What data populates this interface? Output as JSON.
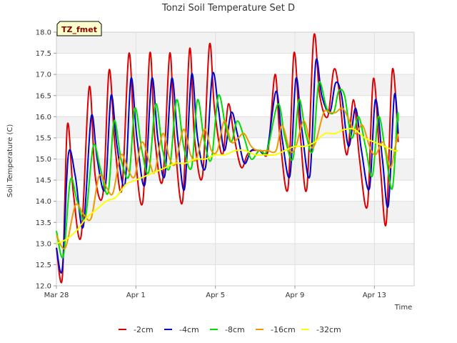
{
  "chart_data": {
    "type": "line",
    "title": "Tonzi Soil Temperature Set D",
    "xlabel": "Time",
    "ylabel": "Soil Temperature (C)",
    "site_label": "TZ_fmet",
    "ylim": [
      12.0,
      18.0
    ],
    "xlim": [
      0,
      18
    ],
    "x_unit": "days since Mar 28",
    "yticks": [
      "12.0",
      "12.5",
      "13.0",
      "13.5",
      "14.0",
      "14.5",
      "15.0",
      "15.5",
      "16.0",
      "16.5",
      "17.0",
      "17.5",
      "18.0"
    ],
    "xticks": [
      {
        "label": "Mar 28",
        "day": 0
      },
      {
        "label": "Apr 1",
        "day": 4
      },
      {
        "label": "Apr 5",
        "day": 8
      },
      {
        "label": "Apr 9",
        "day": 12
      },
      {
        "label": "Apr 13",
        "day": 16
      }
    ],
    "grid": true,
    "legend": "bottom",
    "series": [
      {
        "name": "-2cm",
        "color": "#dd0000",
        "points": [
          [
            0.0,
            12.9
          ],
          [
            0.3,
            12.2
          ],
          [
            0.55,
            15.8
          ],
          [
            0.85,
            14.2
          ],
          [
            1.25,
            13.2
          ],
          [
            1.65,
            16.7
          ],
          [
            1.95,
            14.6
          ],
          [
            2.35,
            14.2
          ],
          [
            2.65,
            17.1
          ],
          [
            2.95,
            15.3
          ],
          [
            3.3,
            14.3
          ],
          [
            3.65,
            17.5
          ],
          [
            3.95,
            15.2
          ],
          [
            4.35,
            14.0
          ],
          [
            4.7,
            17.5
          ],
          [
            4.95,
            15.5
          ],
          [
            5.35,
            14.5
          ],
          [
            5.7,
            17.5
          ],
          [
            5.95,
            15.5
          ],
          [
            6.35,
            14.0
          ],
          [
            6.7,
            17.6
          ],
          [
            6.95,
            15.5
          ],
          [
            7.35,
            14.6
          ],
          [
            7.7,
            17.7
          ],
          [
            7.95,
            16.2
          ],
          [
            8.35,
            15.1
          ],
          [
            8.65,
            16.3
          ],
          [
            8.95,
            15.5
          ],
          [
            9.3,
            14.8
          ],
          [
            9.6,
            15.1
          ],
          [
            9.85,
            15.2
          ],
          [
            10.3,
            15.2
          ],
          [
            10.65,
            15.2
          ],
          [
            11.0,
            17.0
          ],
          [
            11.25,
            15.5
          ],
          [
            11.65,
            14.3
          ],
          [
            11.95,
            17.5
          ],
          [
            12.25,
            15.7
          ],
          [
            12.6,
            14.3
          ],
          [
            12.95,
            17.9
          ],
          [
            13.25,
            16.5
          ],
          [
            13.65,
            16.0
          ],
          [
            13.95,
            17.1
          ],
          [
            14.2,
            16.7
          ],
          [
            14.6,
            15.1
          ],
          [
            14.95,
            16.4
          ],
          [
            15.25,
            15.0
          ],
          [
            15.65,
            13.9
          ],
          [
            15.95,
            16.9
          ],
          [
            16.3,
            14.8
          ],
          [
            16.6,
            13.5
          ],
          [
            16.9,
            17.1
          ],
          [
            17.2,
            15.4
          ]
        ]
      },
      {
        "name": "-4cm",
        "color": "#0000cc",
        "points": [
          [
            0.0,
            12.9
          ],
          [
            0.3,
            12.4
          ],
          [
            0.6,
            15.1
          ],
          [
            0.95,
            14.6
          ],
          [
            1.35,
            13.4
          ],
          [
            1.75,
            16.0
          ],
          [
            2.05,
            15.0
          ],
          [
            2.45,
            14.3
          ],
          [
            2.75,
            16.5
          ],
          [
            3.05,
            15.3
          ],
          [
            3.45,
            14.4
          ],
          [
            3.75,
            16.9
          ],
          [
            4.05,
            15.5
          ],
          [
            4.45,
            14.4
          ],
          [
            4.8,
            16.9
          ],
          [
            5.1,
            15.5
          ],
          [
            5.45,
            14.6
          ],
          [
            5.8,
            16.9
          ],
          [
            6.1,
            15.5
          ],
          [
            6.45,
            14.3
          ],
          [
            6.8,
            17.0
          ],
          [
            7.1,
            15.5
          ],
          [
            7.5,
            14.8
          ],
          [
            7.85,
            17.0
          ],
          [
            8.15,
            16.2
          ],
          [
            8.45,
            15.2
          ],
          [
            8.8,
            16.1
          ],
          [
            9.1,
            15.6
          ],
          [
            9.45,
            14.9
          ],
          [
            9.8,
            15.2
          ],
          [
            10.2,
            15.2
          ],
          [
            10.6,
            15.2
          ],
          [
            11.05,
            16.6
          ],
          [
            11.35,
            15.5
          ],
          [
            11.75,
            14.6
          ],
          [
            12.05,
            16.9
          ],
          [
            12.35,
            15.7
          ],
          [
            12.75,
            14.6
          ],
          [
            13.05,
            17.3
          ],
          [
            13.35,
            16.5
          ],
          [
            13.75,
            16.1
          ],
          [
            14.05,
            16.8
          ],
          [
            14.35,
            16.5
          ],
          [
            14.7,
            15.3
          ],
          [
            15.05,
            16.2
          ],
          [
            15.35,
            15.2
          ],
          [
            15.75,
            14.3
          ],
          [
            16.05,
            16.4
          ],
          [
            16.4,
            15.0
          ],
          [
            16.7,
            13.9
          ],
          [
            17.0,
            16.5
          ],
          [
            17.2,
            15.6
          ]
        ]
      },
      {
        "name": "-8cm",
        "color": "#00dd00",
        "points": [
          [
            0.0,
            13.3
          ],
          [
            0.35,
            12.7
          ],
          [
            0.7,
            14.5
          ],
          [
            1.05,
            14.0
          ],
          [
            1.45,
            13.6
          ],
          [
            1.85,
            15.3
          ],
          [
            2.2,
            14.8
          ],
          [
            2.6,
            14.2
          ],
          [
            2.9,
            15.9
          ],
          [
            3.25,
            15.0
          ],
          [
            3.65,
            14.6
          ],
          [
            3.95,
            16.2
          ],
          [
            4.3,
            15.2
          ],
          [
            4.65,
            14.7
          ],
          [
            5.0,
            16.3
          ],
          [
            5.35,
            15.2
          ],
          [
            5.7,
            14.8
          ],
          [
            6.05,
            16.4
          ],
          [
            6.4,
            15.3
          ],
          [
            6.8,
            14.8
          ],
          [
            7.1,
            16.4
          ],
          [
            7.45,
            15.4
          ],
          [
            7.8,
            15.0
          ],
          [
            8.15,
            16.5
          ],
          [
            8.5,
            15.8
          ],
          [
            8.8,
            15.4
          ],
          [
            9.1,
            15.9
          ],
          [
            9.45,
            15.5
          ],
          [
            9.8,
            15.0
          ],
          [
            10.2,
            15.2
          ],
          [
            10.6,
            15.2
          ],
          [
            11.15,
            16.3
          ],
          [
            11.5,
            15.5
          ],
          [
            11.9,
            15.0
          ],
          [
            12.2,
            16.4
          ],
          [
            12.55,
            15.6
          ],
          [
            12.9,
            15.2
          ],
          [
            13.2,
            16.8
          ],
          [
            13.6,
            16.2
          ],
          [
            13.95,
            16.1
          ],
          [
            14.2,
            16.6
          ],
          [
            14.5,
            16.5
          ],
          [
            14.85,
            15.5
          ],
          [
            15.2,
            16.0
          ],
          [
            15.55,
            15.3
          ],
          [
            15.9,
            14.6
          ],
          [
            16.2,
            16.0
          ],
          [
            16.55,
            15.2
          ],
          [
            16.9,
            14.3
          ],
          [
            17.15,
            16.0
          ],
          [
            17.2,
            15.9
          ]
        ]
      },
      {
        "name": "-16cm",
        "color": "#ee9900",
        "points": [
          [
            0.0,
            13.2
          ],
          [
            0.45,
            12.9
          ],
          [
            0.95,
            13.9
          ],
          [
            1.35,
            13.7
          ],
          [
            1.75,
            13.6
          ],
          [
            2.15,
            14.6
          ],
          [
            2.55,
            14.3
          ],
          [
            2.85,
            14.2
          ],
          [
            3.25,
            15.1
          ],
          [
            3.65,
            14.7
          ],
          [
            3.95,
            14.6
          ],
          [
            4.3,
            15.4
          ],
          [
            4.7,
            14.9
          ],
          [
            4.95,
            14.7
          ],
          [
            5.35,
            15.6
          ],
          [
            5.7,
            15.0
          ],
          [
            6.0,
            14.9
          ],
          [
            6.4,
            15.7
          ],
          [
            6.75,
            15.1
          ],
          [
            7.05,
            15.0
          ],
          [
            7.45,
            15.7
          ],
          [
            7.8,
            15.2
          ],
          [
            8.1,
            15.2
          ],
          [
            8.45,
            15.9
          ],
          [
            8.8,
            15.4
          ],
          [
            9.15,
            15.5
          ],
          [
            9.45,
            15.6
          ],
          [
            9.8,
            15.3
          ],
          [
            10.15,
            15.2
          ],
          [
            10.6,
            15.2
          ],
          [
            11.05,
            15.2
          ],
          [
            11.35,
            15.8
          ],
          [
            11.75,
            15.2
          ],
          [
            12.05,
            15.3
          ],
          [
            12.45,
            15.9
          ],
          [
            12.8,
            15.3
          ],
          [
            13.05,
            15.4
          ],
          [
            13.45,
            16.1
          ],
          [
            13.75,
            16.1
          ],
          [
            14.05,
            16.1
          ],
          [
            14.4,
            16.2
          ],
          [
            14.75,
            15.9
          ],
          [
            15.05,
            15.6
          ],
          [
            15.4,
            15.8
          ],
          [
            15.75,
            15.3
          ],
          [
            16.05,
            15.1
          ],
          [
            16.45,
            15.4
          ],
          [
            16.8,
            14.8
          ],
          [
            17.05,
            15.3
          ],
          [
            17.2,
            15.6
          ]
        ]
      },
      {
        "name": "-32cm",
        "color": "#ffff00",
        "points": [
          [
            0.0,
            13.0
          ],
          [
            0.5,
            13.1
          ],
          [
            1.0,
            13.3
          ],
          [
            1.5,
            13.6
          ],
          [
            2.0,
            13.8
          ],
          [
            2.5,
            14.0
          ],
          [
            3.0,
            14.1
          ],
          [
            3.5,
            14.4
          ],
          [
            4.0,
            14.5
          ],
          [
            4.5,
            14.6
          ],
          [
            5.0,
            14.7
          ],
          [
            5.5,
            14.8
          ],
          [
            6.0,
            14.9
          ],
          [
            6.5,
            14.9
          ],
          [
            7.0,
            15.0
          ],
          [
            7.5,
            15.0
          ],
          [
            8.0,
            15.1
          ],
          [
            8.5,
            15.1
          ],
          [
            9.0,
            15.2
          ],
          [
            9.5,
            15.2
          ],
          [
            10.0,
            15.1
          ],
          [
            10.5,
            15.1
          ],
          [
            11.0,
            15.1
          ],
          [
            11.5,
            15.2
          ],
          [
            12.0,
            15.3
          ],
          [
            12.5,
            15.3
          ],
          [
            13.0,
            15.4
          ],
          [
            13.5,
            15.6
          ],
          [
            14.0,
            15.6
          ],
          [
            14.5,
            15.7
          ],
          [
            15.0,
            15.7
          ],
          [
            15.5,
            15.5
          ],
          [
            16.0,
            15.4
          ],
          [
            16.5,
            15.3
          ],
          [
            17.0,
            15.2
          ],
          [
            17.2,
            15.2
          ]
        ]
      }
    ]
  }
}
